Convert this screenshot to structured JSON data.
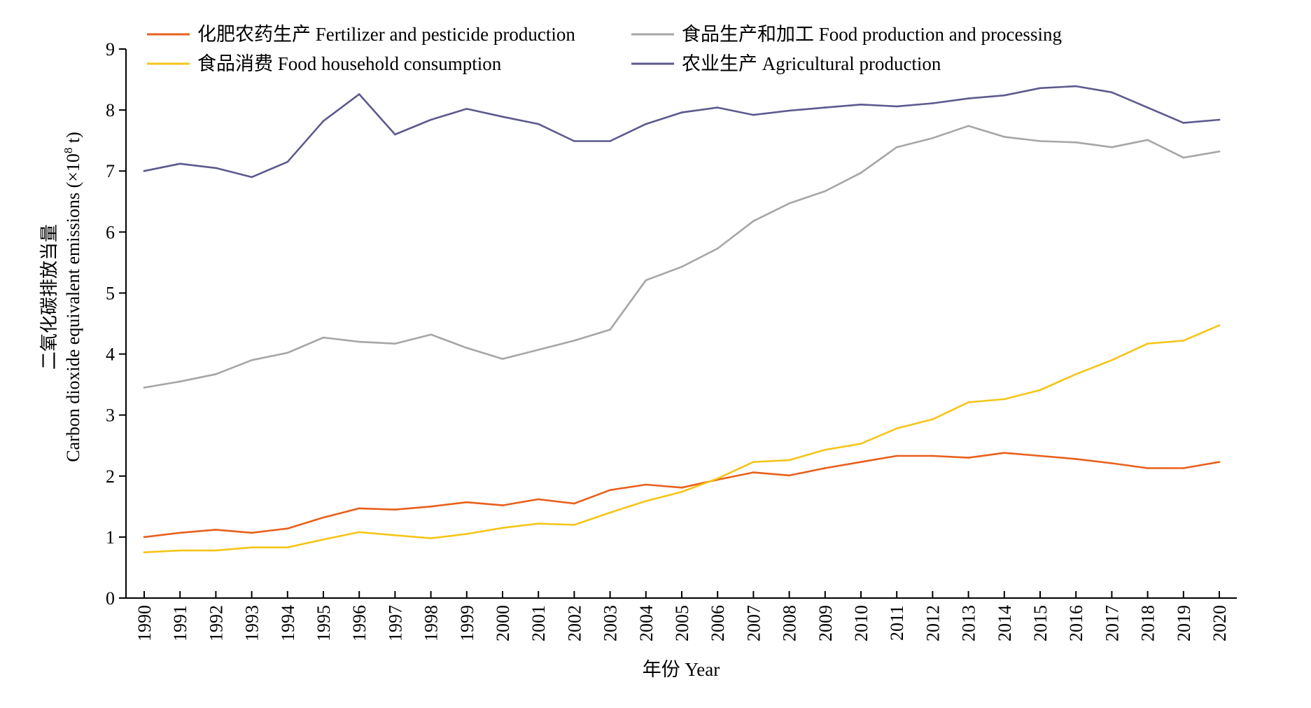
{
  "chart_data": {
    "type": "line",
    "ylabel_cn": "二氧化碳排放当量",
    "ylabel_en": "Carbon dioxide equivalent emissions (×10",
    "ylabel_sup": "8",
    "ylabel_unit": " t)",
    "xlabel": "年份 Year",
    "ylim": [
      0,
      9
    ],
    "yticks": [
      "0",
      "1",
      "2",
      "3",
      "4",
      "5",
      "6",
      "7",
      "8",
      "9"
    ],
    "grid": false,
    "legend_position": "top",
    "categories": [
      "1990",
      "1991",
      "1992",
      "1993",
      "1994",
      "1995",
      "1996",
      "1997",
      "1998",
      "1999",
      "2000",
      "2001",
      "2002",
      "2003",
      "2004",
      "2005",
      "2006",
      "2007",
      "2008",
      "2009",
      "2010",
      "2011",
      "2012",
      "2013",
      "2014",
      "2015",
      "2016",
      "2017",
      "2018",
      "2019",
      "2020"
    ],
    "series": [
      {
        "name": "化肥农药生产 Fertilizer and pesticide production",
        "color": "#E8601C",
        "values": [
          1.0,
          1.07,
          1.12,
          1.07,
          1.14,
          1.32,
          1.47,
          1.45,
          1.5,
          1.57,
          1.52,
          1.62,
          1.55,
          1.77,
          1.86,
          1.81,
          1.94,
          2.06,
          2.01,
          2.13,
          2.23,
          2.33,
          2.33,
          2.3,
          2.38,
          2.33,
          2.28,
          2.21,
          2.13,
          2.13,
          2.23
        ]
      },
      {
        "name": "食品生产和加工 Food production and processing",
        "color": "#A6A6A6",
        "values": [
          3.45,
          3.55,
          3.67,
          3.9,
          4.02,
          4.27,
          4.2,
          4.17,
          4.32,
          4.1,
          3.92,
          4.07,
          4.22,
          4.4,
          5.21,
          5.43,
          5.73,
          6.18,
          6.47,
          6.67,
          6.97,
          7.39,
          7.54,
          7.74,
          7.56,
          7.49,
          7.47,
          7.39,
          7.51,
          7.22,
          7.32
        ]
      },
      {
        "name": "食品消费 Food household consumption",
        "color": "#F5C518",
        "values": [
          0.75,
          0.78,
          0.78,
          0.83,
          0.83,
          0.96,
          1.08,
          1.03,
          0.98,
          1.05,
          1.15,
          1.22,
          1.2,
          1.4,
          1.59,
          1.74,
          1.96,
          2.23,
          2.26,
          2.43,
          2.53,
          2.78,
          2.93,
          3.21,
          3.26,
          3.41,
          3.67,
          3.9,
          4.17,
          4.22,
          4.47
        ]
      },
      {
        "name": "农业生产 Agricultural production",
        "color": "#5C5A8E",
        "values": [
          7.0,
          7.12,
          7.05,
          6.9,
          7.15,
          7.82,
          8.26,
          7.6,
          7.84,
          8.02,
          7.89,
          7.77,
          7.49,
          7.49,
          7.77,
          7.96,
          8.04,
          7.92,
          7.99,
          8.04,
          8.09,
          8.06,
          8.11,
          8.19,
          8.24,
          8.36,
          8.39,
          8.29,
          8.04,
          7.79,
          7.84
        ]
      }
    ]
  }
}
